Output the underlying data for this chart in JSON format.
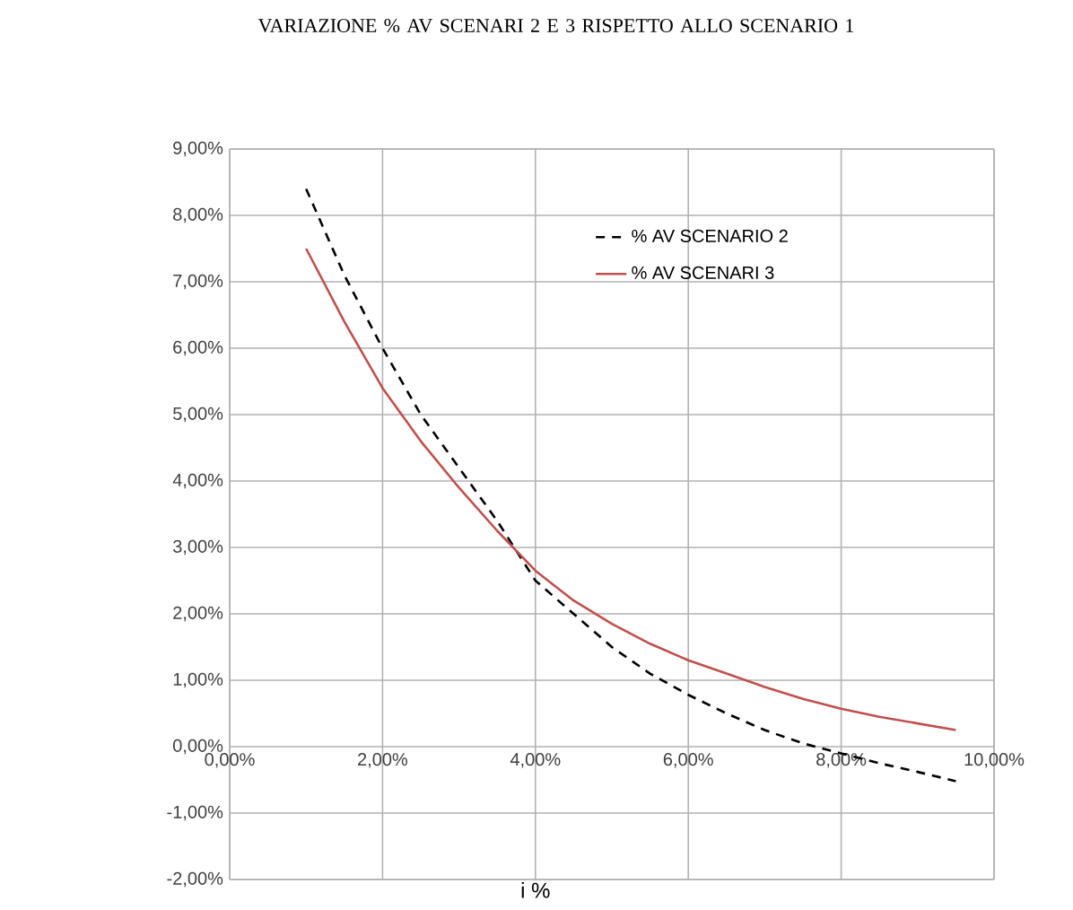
{
  "chart_data": {
    "type": "line",
    "title": "VARIAZIONE % AV  SCENARI 2 E 3 RISPETTO ALLO SCENARIO 1",
    "xlabel": "i %",
    "x": [
      1,
      1.5,
      2,
      2.5,
      3,
      3.5,
      4,
      4.5,
      5,
      5.5,
      6,
      6.5,
      7,
      7.5,
      8,
      8.5,
      9,
      9.5
    ],
    "series": [
      {
        "name": "% AV SCENARIO 2",
        "color": "#000000",
        "line_style": "dashed",
        "values": [
          8.4,
          7.1,
          6.0,
          5.0,
          4.2,
          3.4,
          2.5,
          2.0,
          1.5,
          1.1,
          0.78,
          0.5,
          0.25,
          0.05,
          -0.1,
          -0.25,
          -0.38,
          -0.52
        ]
      },
      {
        "name": "% AV SCENARI 3",
        "color": "#c0504d",
        "line_style": "solid",
        "values": [
          7.5,
          6.4,
          5.4,
          4.6,
          3.9,
          3.25,
          2.65,
          2.2,
          1.85,
          1.55,
          1.3,
          1.1,
          0.9,
          0.72,
          0.57,
          0.45,
          0.35,
          0.25
        ]
      }
    ],
    "xlim": [
      0,
      10
    ],
    "ylim": [
      -2,
      9
    ],
    "xticks": [
      {
        "value": 0,
        "label": "0,00%"
      },
      {
        "value": 2,
        "label": "2,00%"
      },
      {
        "value": 4,
        "label": "4,00%"
      },
      {
        "value": 6,
        "label": "6,00%"
      },
      {
        "value": 8,
        "label": "8,00%"
      },
      {
        "value": 10,
        "label": "10,00%"
      }
    ],
    "yticks": [
      {
        "value": -2,
        "label": "-2,00%"
      },
      {
        "value": -1,
        "label": "-1,00%"
      },
      {
        "value": 0,
        "label": "0,00%"
      },
      {
        "value": 1,
        "label": "1,00%"
      },
      {
        "value": 2,
        "label": "2,00%"
      },
      {
        "value": 3,
        "label": "3,00%"
      },
      {
        "value": 4,
        "label": "4,00%"
      },
      {
        "value": 5,
        "label": "5,00%"
      },
      {
        "value": 6,
        "label": "6,00%"
      },
      {
        "value": 7,
        "label": "7,00%"
      },
      {
        "value": 8,
        "label": "8,00%"
      },
      {
        "value": 9,
        "label": "9,00%"
      }
    ],
    "grid": true,
    "legend": "top right",
    "marker": "none"
  }
}
